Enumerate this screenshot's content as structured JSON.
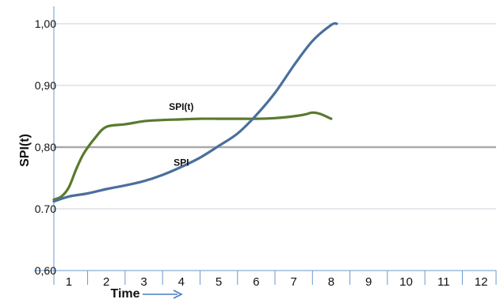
{
  "chart_data": {
    "type": "line",
    "ylabel": "SPI(t)",
    "xlabel": "Time",
    "ylim": [
      0.6,
      1.0
    ],
    "xlim": [
      0.6,
      12.4
    ],
    "y_ticks": [
      {
        "value": 1.0,
        "label": "1,00"
      },
      {
        "value": 0.9,
        "label": "0,90"
      },
      {
        "value": 0.8,
        "label": "0,80"
      },
      {
        "value": 0.7,
        "label": "0.70"
      },
      {
        "value": 0.6,
        "label": "0,60"
      }
    ],
    "x_ticks": [
      {
        "value": 1,
        "label": "1"
      },
      {
        "value": 2,
        "label": "2"
      },
      {
        "value": 3,
        "label": "3"
      },
      {
        "value": 4,
        "label": "4"
      },
      {
        "value": 5,
        "label": "5"
      },
      {
        "value": 6,
        "label": "6"
      },
      {
        "value": 7,
        "label": "7"
      },
      {
        "value": 8,
        "label": "8"
      },
      {
        "value": 9,
        "label": "9"
      },
      {
        "value": 10,
        "label": "10"
      },
      {
        "value": 11,
        "label": "11"
      },
      {
        "value": 12,
        "label": "12"
      }
    ],
    "grid": true,
    "reference_line": {
      "value": 0.8
    },
    "series": [
      {
        "name": "SPI(t)",
        "color": "#5a7a2e",
        "x": [
          0.6,
          0.8,
          1.0,
          1.2,
          1.4,
          1.7,
          2.0,
          2.5,
          3.0,
          3.5,
          4.0,
          4.5,
          5.0,
          5.5,
          6.0,
          6.5,
          7.0,
          7.3,
          7.5,
          7.7,
          8.0
        ],
        "y": [
          0.715,
          0.72,
          0.735,
          0.765,
          0.79,
          0.815,
          0.833,
          0.837,
          0.842,
          0.844,
          0.845,
          0.846,
          0.846,
          0.846,
          0.846,
          0.847,
          0.85,
          0.853,
          0.856,
          0.854,
          0.846
        ]
      },
      {
        "name": "SPI",
        "color": "#4a6f9c",
        "x": [
          0.6,
          1.0,
          1.5,
          2.0,
          2.5,
          3.0,
          3.5,
          4.0,
          4.5,
          5.0,
          5.5,
          6.0,
          6.5,
          7.0,
          7.5,
          8.0,
          8.15
        ],
        "y": [
          0.712,
          0.72,
          0.725,
          0.732,
          0.738,
          0.745,
          0.755,
          0.768,
          0.783,
          0.802,
          0.822,
          0.852,
          0.888,
          0.932,
          0.972,
          0.998,
          1.0
        ]
      }
    ],
    "annotations": [
      {
        "text": "SPI(t)",
        "x": 4.0,
        "y": 0.86
      },
      {
        "text": "SPI",
        "x": 4.0,
        "y": 0.77
      }
    ]
  }
}
